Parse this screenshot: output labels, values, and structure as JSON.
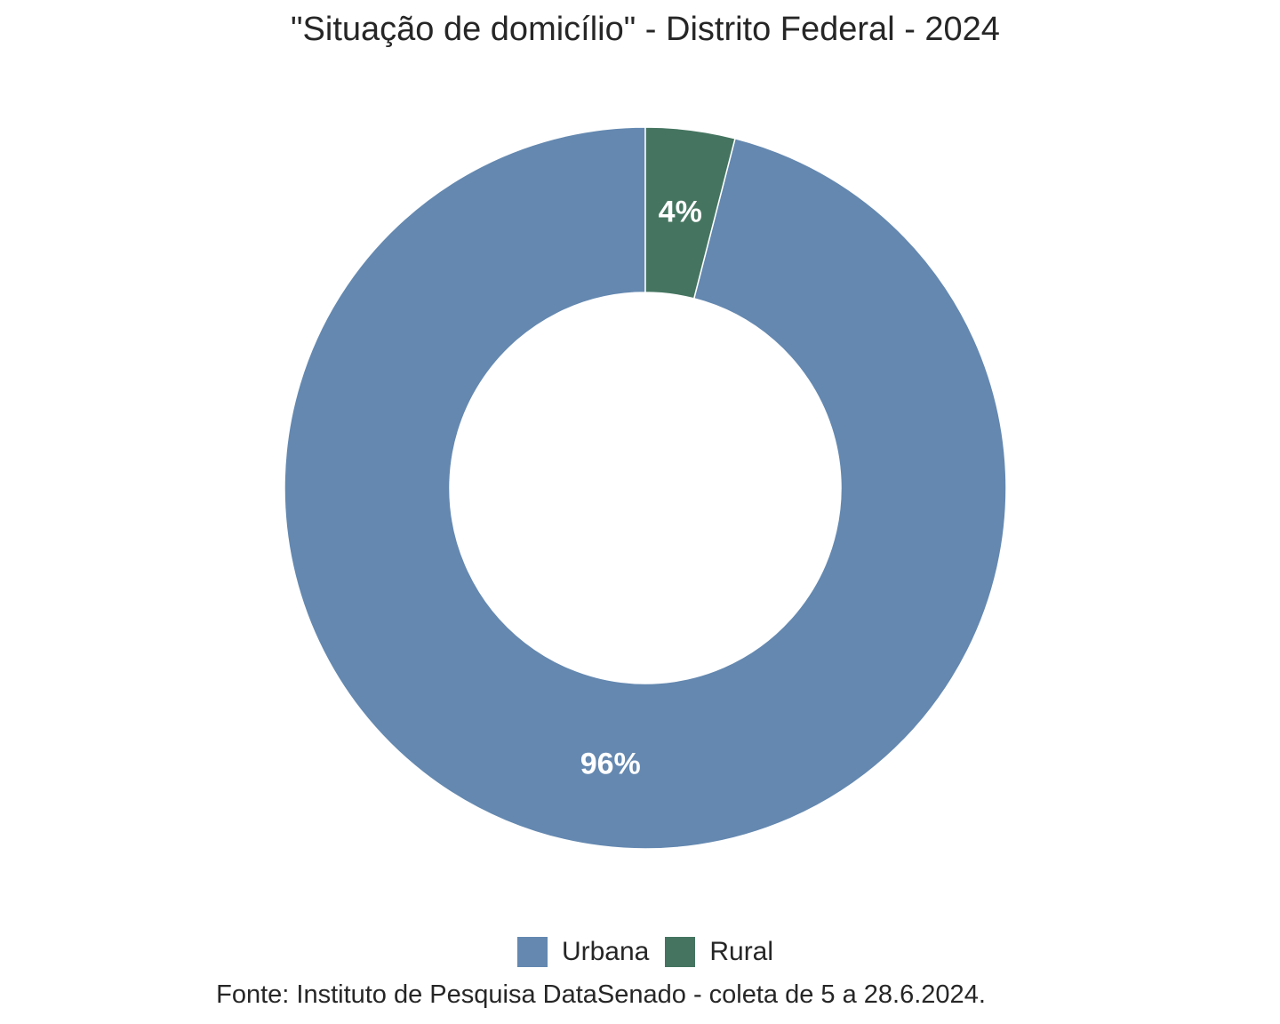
{
  "chart_data": {
    "type": "pie",
    "variant": "donut",
    "title": "\"Situação de domicílio\" - Distrito Federal - 2024",
    "categories": [
      "Urbana",
      "Rural"
    ],
    "values": [
      96,
      4
    ],
    "data_labels": [
      "96%",
      "4%"
    ],
    "unit": "%",
    "colors": [
      "#6488b0",
      "#457561"
    ],
    "label_color": "#ffffff",
    "legend": {
      "placement": "bottom",
      "entries": [
        "Urbana",
        "Rural"
      ]
    },
    "caption": "Fonte: Instituto de Pesquisa DataSenado - coleta de 5 a 28.6.2024."
  }
}
